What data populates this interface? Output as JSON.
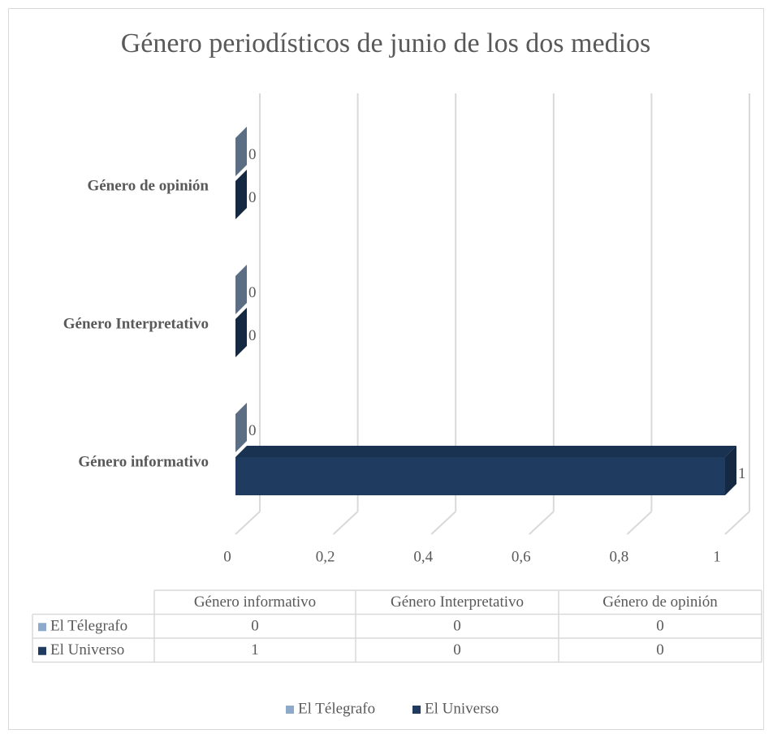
{
  "chart_data": {
    "type": "bar3d_horizontal",
    "title": "Género periodísticos de junio de los dos medios",
    "categories": [
      "Género informativo",
      "Género Interpretativo",
      "Género de opinión"
    ],
    "series": [
      {
        "name": "El Télegrafo",
        "color": "#8eaacb",
        "values": [
          0,
          0,
          0
        ]
      },
      {
        "name": "El Universo",
        "color": "#1f3b60",
        "values": [
          1,
          0,
          0
        ]
      }
    ],
    "xlim": [
      0,
      1
    ],
    "xticks": [
      0,
      {
        "value": 0.2,
        "label": "0,2"
      },
      {
        "value": 0.4,
        "label": "0,4"
      },
      {
        "value": 0.6,
        "label": "0,6"
      },
      {
        "value": 0.8,
        "label": "0,8"
      },
      1
    ],
    "grid": true,
    "data_table": true,
    "legend": "bottom"
  }
}
